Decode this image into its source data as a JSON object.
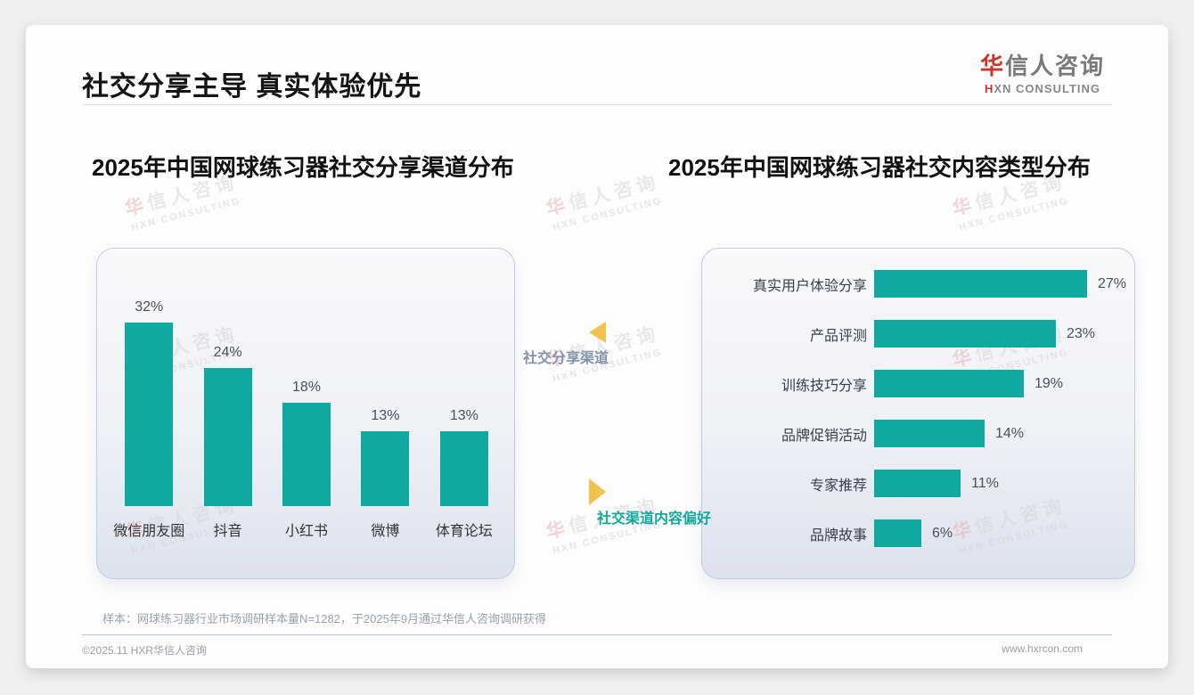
{
  "header": {
    "title": "社交分享主导 真实体验优先"
  },
  "logo": {
    "cn_accent": "华",
    "cn_rest": "信人咨询",
    "en_accent": "H",
    "en_rest": "XN CONSULTING"
  },
  "watermark": {
    "cn_accent": "华",
    "cn_rest": "信人咨询",
    "en": "HXN CONSULTING"
  },
  "middle": {
    "label_top": "社交分享渠道",
    "label_bottom": "社交渠道内容偏好"
  },
  "chart_data": [
    {
      "type": "bar",
      "orientation": "vertical",
      "title": "2025年中国网球练习器社交分享渠道分布",
      "categories": [
        "微信朋友圈",
        "抖音",
        "小红书",
        "微博",
        "体育论坛"
      ],
      "values": [
        32,
        24,
        18,
        13,
        13
      ],
      "unit": "%",
      "bar_color": "#0fa9a0",
      "ylim": [
        0,
        35
      ],
      "grid": false,
      "legend": "none"
    },
    {
      "type": "bar",
      "orientation": "horizontal",
      "title": "2025年中国网球练习器社交内容类型分布",
      "categories": [
        "真实用户体验分享",
        "产品评测",
        "训练技巧分享",
        "品牌促销活动",
        "专家推荐",
        "品牌故事"
      ],
      "values": [
        27,
        23,
        19,
        14,
        11,
        6
      ],
      "unit": "%",
      "bar_color": "#0fa9a0",
      "xlim": [
        0,
        30
      ],
      "grid": false,
      "legend": "none"
    }
  ],
  "footnote": "样本：网球练习器行业市场调研样本量N=1282，于2025年9月通过华信人咨询调研获得",
  "footer": {
    "left": "©2025.11 HXR华信人咨询",
    "right": "www.hxrcon.com"
  },
  "colors": {
    "bar_teal": "#0fa9a0",
    "triangle_gold": "#f3c14f",
    "mid_label_top": "#8494ad",
    "mid_label_bottom": "#14a79b",
    "logo_red": "#c9342c"
  }
}
